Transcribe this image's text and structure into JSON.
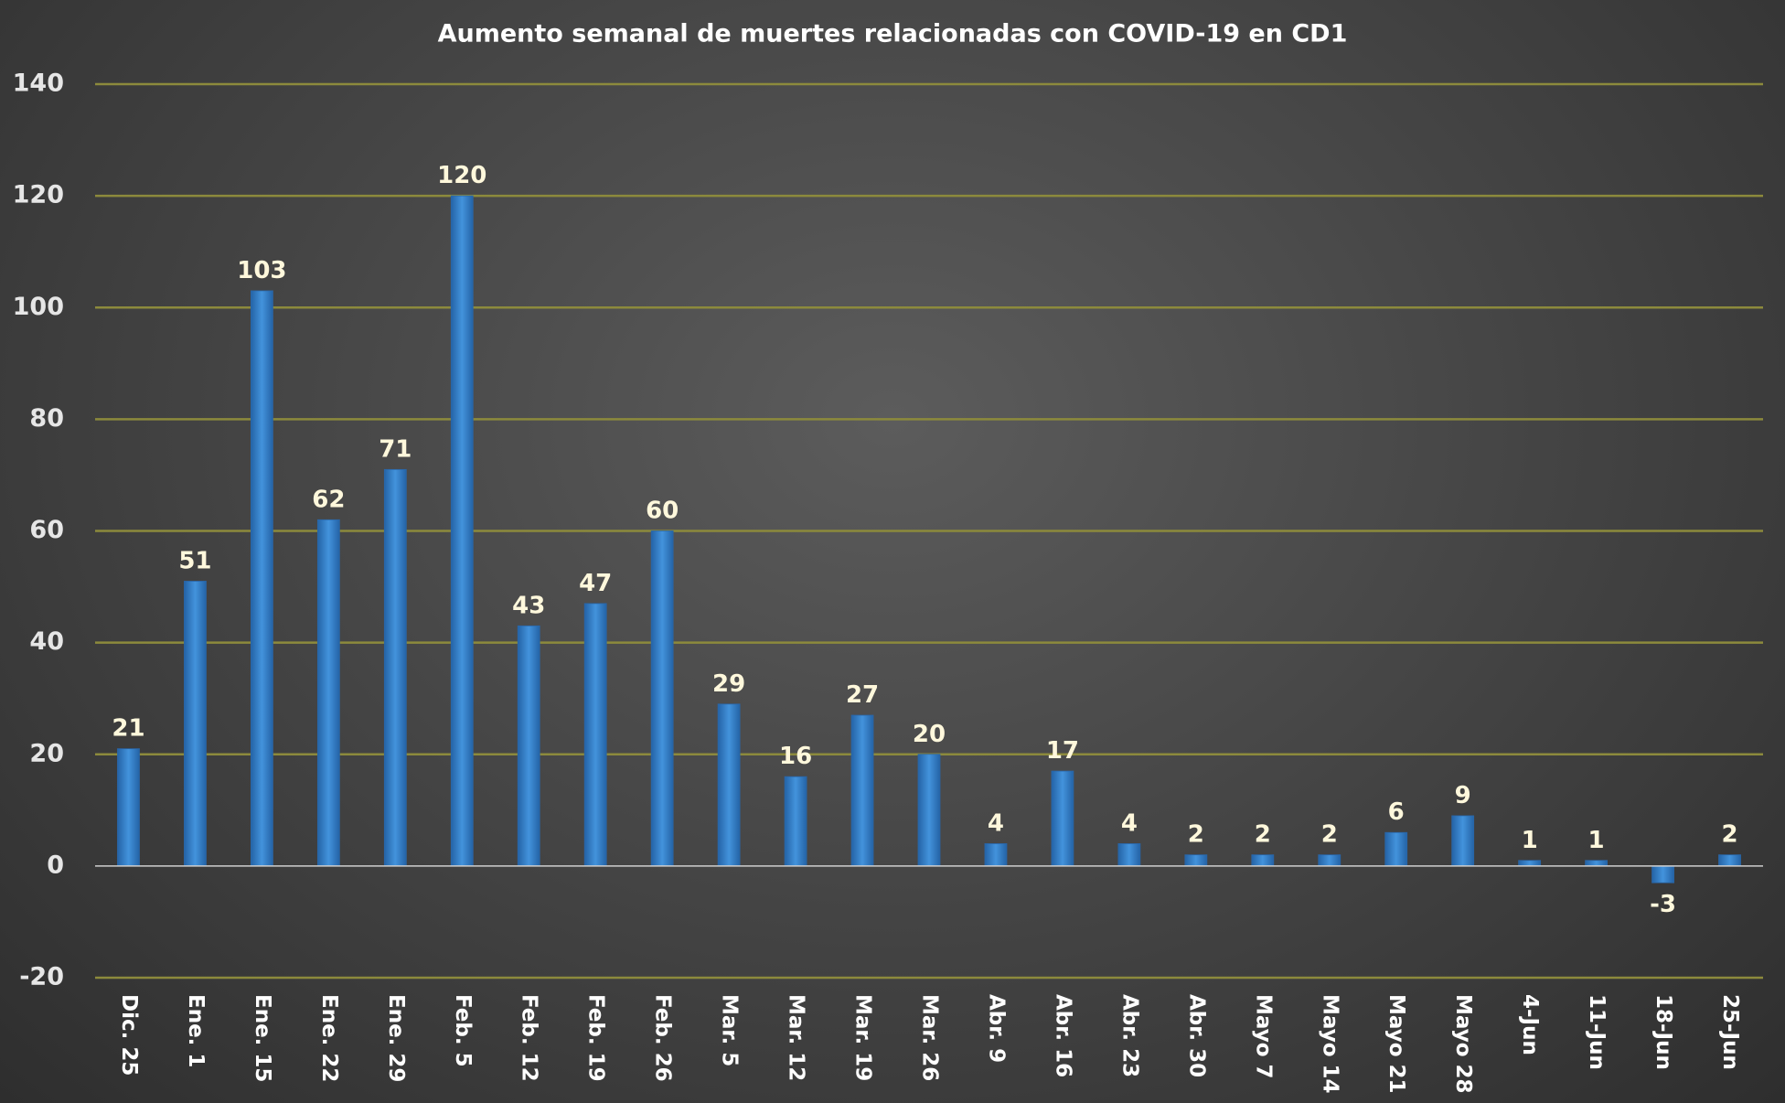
{
  "chart_data": {
    "type": "bar",
    "title": "Aumento semanal de muertes relacionadas con COVID-19 en CD1",
    "xlabel": "",
    "ylabel": "",
    "ylim": [
      -20,
      140
    ],
    "yticks": [
      140,
      120,
      100,
      80,
      60,
      40,
      20,
      0,
      -20
    ],
    "grid": true,
    "legend": "none",
    "colors": {
      "bar": "#3a85cc",
      "bar_edge": "#2a66a8",
      "gridline": "#8c8a3c",
      "data_label": "#fff8dc"
    },
    "categories": [
      "Dic. 25",
      "Ene. 1",
      "Ene. 15",
      "Ene. 22",
      "Ene. 29",
      "Feb. 5",
      "Feb. 12",
      "Feb. 19",
      "Feb. 26",
      "Mar. 5",
      "Mar. 12",
      "Mar. 19",
      "Mar. 26",
      "Abr. 9",
      "Abr. 16",
      "Abr. 23",
      "Abr. 30",
      "Mayo 7",
      "Mayo 14",
      "Mayo 21",
      "Mayo 28",
      "4-Jun",
      "11-Jun",
      "18-Jun",
      "25-Jun"
    ],
    "values": [
      21,
      51,
      103,
      62,
      71,
      120,
      43,
      47,
      60,
      29,
      16,
      27,
      20,
      4,
      17,
      4,
      2,
      2,
      2,
      6,
      9,
      1,
      1,
      -3,
      2
    ]
  }
}
